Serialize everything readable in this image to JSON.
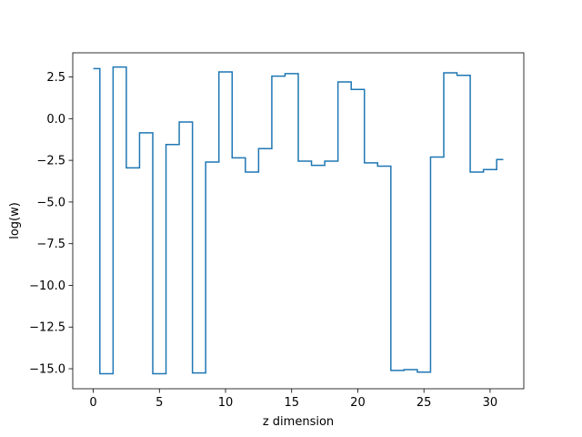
{
  "chart_data": {
    "type": "line",
    "drawstyle": "steps-mid",
    "title": "",
    "xlabel": "z dimension",
    "ylabel": "log(w)",
    "xlim": [
      -1.55,
      32.55
    ],
    "ylim": [
      -16.2,
      3.95
    ],
    "x_ticks": [
      0,
      5,
      10,
      15,
      20,
      25,
      30
    ],
    "x_tick_labels": [
      "0",
      "5",
      "10",
      "15",
      "20",
      "25",
      "30"
    ],
    "y_ticks": [
      2.5,
      0.0,
      -2.5,
      -5.0,
      -7.5,
      -10.0,
      -12.5,
      -15.0
    ],
    "y_tick_labels": [
      "2.5",
      "0.0",
      "−2.5",
      "−5.0",
      "−7.5",
      "−10.0",
      "−12.5",
      "−15.0"
    ],
    "grid": false,
    "legend": "none",
    "series": [
      {
        "color": "#1f77b4",
        "x": [
          0,
          1,
          2,
          3,
          4,
          5,
          6,
          7,
          8,
          9,
          10,
          11,
          12,
          13,
          14,
          15,
          16,
          17,
          18,
          19,
          20,
          21,
          22,
          23,
          24,
          25,
          26,
          27,
          28,
          29,
          30,
          31
        ],
        "y": [
          3.0,
          -15.3,
          3.1,
          -2.95,
          -0.85,
          -15.3,
          -1.55,
          -0.2,
          -15.25,
          -2.6,
          2.8,
          -2.35,
          -3.2,
          -1.8,
          2.55,
          2.7,
          -2.55,
          -2.8,
          -2.55,
          2.2,
          1.75,
          -2.65,
          -2.85,
          -15.1,
          -15.05,
          -15.2,
          -2.3,
          2.75,
          2.6,
          -3.2,
          -3.05,
          -2.45
        ]
      }
    ]
  }
}
